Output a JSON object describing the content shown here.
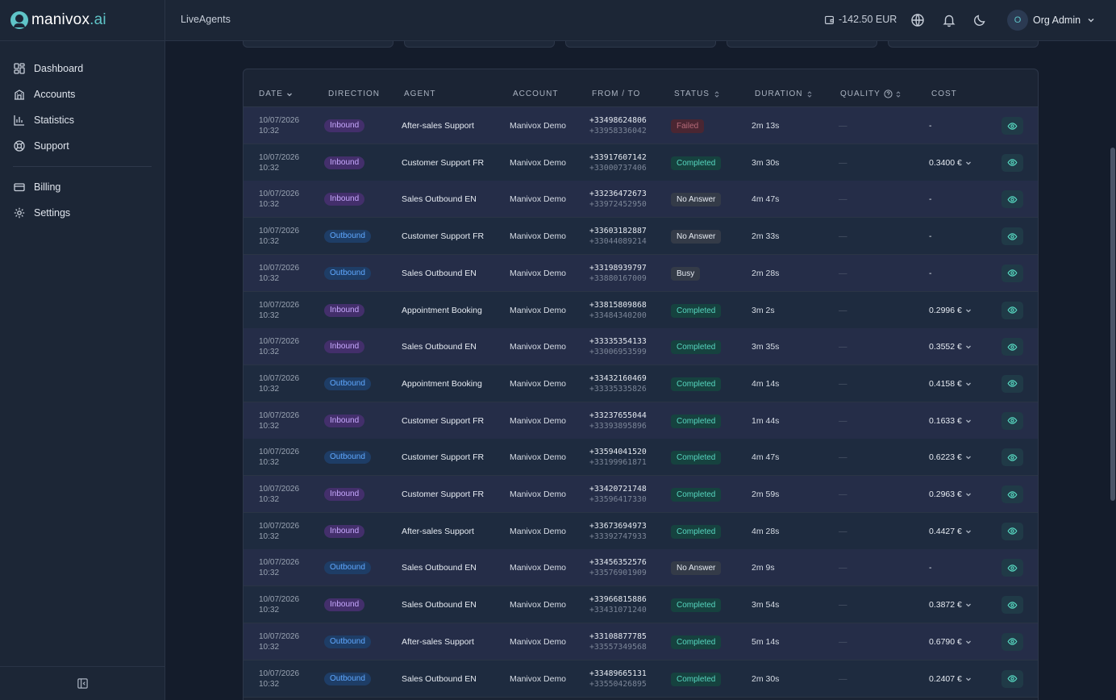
{
  "app": {
    "logo_main": "manivox",
    "logo_dot": ".ai",
    "brand": "LiveAgents",
    "balance": "-142.50 EUR",
    "user_initial": "O",
    "user_name": "Org Admin"
  },
  "sidebar": {
    "items": [
      {
        "label": "Dashboard",
        "icon": "dashboard-icon"
      },
      {
        "label": "Accounts",
        "icon": "accounts-icon"
      },
      {
        "label": "Statistics",
        "icon": "statistics-icon"
      },
      {
        "label": "Support",
        "icon": "support-icon"
      },
      {
        "label": "Billing",
        "icon": "billing-icon"
      },
      {
        "label": "Settings",
        "icon": "settings-icon"
      }
    ]
  },
  "table": {
    "headers": {
      "date": "DATE",
      "direction": "DIRECTION",
      "agent": "AGENT",
      "account": "ACCOUNT",
      "from_to": "FROM / TO",
      "status": "STATUS",
      "duration": "DURATION",
      "quality": "QUALITY",
      "cost": "COST"
    },
    "rows": [
      {
        "date": "10/07/2026",
        "time": "10:32",
        "direction": "Inbound",
        "agent": "After-sales Support",
        "account": "Manivox Demo",
        "from": "+33498624806",
        "to": "+33958336042",
        "status": "Failed",
        "duration": "2m 13s",
        "quality": "—",
        "cost": "-"
      },
      {
        "date": "10/07/2026",
        "time": "10:32",
        "direction": "Inbound",
        "agent": "Customer Support FR",
        "account": "Manivox Demo",
        "from": "+33917607142",
        "to": "+33000737406",
        "status": "Completed",
        "duration": "3m 30s",
        "quality": "—",
        "cost": "0.3400 €"
      },
      {
        "date": "10/07/2026",
        "time": "10:32",
        "direction": "Inbound",
        "agent": "Sales Outbound EN",
        "account": "Manivox Demo",
        "from": "+33236472673",
        "to": "+33972452950",
        "status": "No Answer",
        "duration": "4m 47s",
        "quality": "—",
        "cost": "-"
      },
      {
        "date": "10/07/2026",
        "time": "10:32",
        "direction": "Outbound",
        "agent": "Customer Support FR",
        "account": "Manivox Demo",
        "from": "+33603182887",
        "to": "+33044089214",
        "status": "No Answer",
        "duration": "2m 33s",
        "quality": "—",
        "cost": "-"
      },
      {
        "date": "10/07/2026",
        "time": "10:32",
        "direction": "Outbound",
        "agent": "Sales Outbound EN",
        "account": "Manivox Demo",
        "from": "+33198939797",
        "to": "+33880167009",
        "status": "Busy",
        "duration": "2m 28s",
        "quality": "—",
        "cost": "-"
      },
      {
        "date": "10/07/2026",
        "time": "10:32",
        "direction": "Inbound",
        "agent": "Appointment Booking",
        "account": "Manivox Demo",
        "from": "+33815809868",
        "to": "+33484340200",
        "status": "Completed",
        "duration": "3m 2s",
        "quality": "—",
        "cost": "0.2996 €"
      },
      {
        "date": "10/07/2026",
        "time": "10:32",
        "direction": "Inbound",
        "agent": "Sales Outbound EN",
        "account": "Manivox Demo",
        "from": "+33335354133",
        "to": "+33006953599",
        "status": "Completed",
        "duration": "3m 35s",
        "quality": "—",
        "cost": "0.3552 €"
      },
      {
        "date": "10/07/2026",
        "time": "10:32",
        "direction": "Outbound",
        "agent": "Appointment Booking",
        "account": "Manivox Demo",
        "from": "+33432160469",
        "to": "+33335335826",
        "status": "Completed",
        "duration": "4m 14s",
        "quality": "—",
        "cost": "0.4158 €"
      },
      {
        "date": "10/07/2026",
        "time": "10:32",
        "direction": "Inbound",
        "agent": "Customer Support FR",
        "account": "Manivox Demo",
        "from": "+33237655044",
        "to": "+33393895896",
        "status": "Completed",
        "duration": "1m 44s",
        "quality": "—",
        "cost": "0.1633 €"
      },
      {
        "date": "10/07/2026",
        "time": "10:32",
        "direction": "Outbound",
        "agent": "Customer Support FR",
        "account": "Manivox Demo",
        "from": "+33594041520",
        "to": "+33199961871",
        "status": "Completed",
        "duration": "4m 47s",
        "quality": "—",
        "cost": "0.6223 €"
      },
      {
        "date": "10/07/2026",
        "time": "10:32",
        "direction": "Inbound",
        "agent": "Customer Support FR",
        "account": "Manivox Demo",
        "from": "+33420721748",
        "to": "+33596417330",
        "status": "Completed",
        "duration": "2m 59s",
        "quality": "—",
        "cost": "0.2963 €"
      },
      {
        "date": "10/07/2026",
        "time": "10:32",
        "direction": "Inbound",
        "agent": "After-sales Support",
        "account": "Manivox Demo",
        "from": "+33673694973",
        "to": "+33392747933",
        "status": "Completed",
        "duration": "4m 28s",
        "quality": "—",
        "cost": "0.4427 €"
      },
      {
        "date": "10/07/2026",
        "time": "10:32",
        "direction": "Outbound",
        "agent": "Sales Outbound EN",
        "account": "Manivox Demo",
        "from": "+33456352576",
        "to": "+33576901909",
        "status": "No Answer",
        "duration": "2m 9s",
        "quality": "—",
        "cost": "-"
      },
      {
        "date": "10/07/2026",
        "time": "10:32",
        "direction": "Inbound",
        "agent": "Sales Outbound EN",
        "account": "Manivox Demo",
        "from": "+33966815886",
        "to": "+33431071240",
        "status": "Completed",
        "duration": "3m 54s",
        "quality": "—",
        "cost": "0.3872 €"
      },
      {
        "date": "10/07/2026",
        "time": "10:32",
        "direction": "Outbound",
        "agent": "After-sales Support",
        "account": "Manivox Demo",
        "from": "+33108877785",
        "to": "+33557349568",
        "status": "Completed",
        "duration": "5m 14s",
        "quality": "—",
        "cost": "0.6790 €"
      },
      {
        "date": "10/07/2026",
        "time": "10:32",
        "direction": "Outbound",
        "agent": "Sales Outbound EN",
        "account": "Manivox Demo",
        "from": "+33489665131",
        "to": "+33550426895",
        "status": "Completed",
        "duration": "2m 30s",
        "quality": "—",
        "cost": "0.2407 €"
      }
    ]
  },
  "colors": {
    "accent": "#5fc4c8",
    "inbound": "#c8a9ff",
    "outbound": "#5fa8ff",
    "completed": "#56d6bf",
    "failed": "#b56a78"
  }
}
